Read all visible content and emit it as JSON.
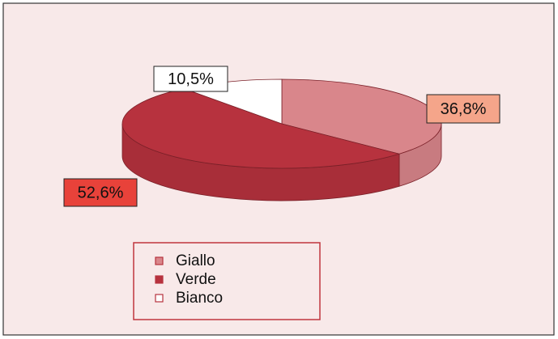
{
  "chart_data": {
    "type": "pie3d",
    "categories": [
      "Giallo",
      "Verde",
      "Bianco"
    ],
    "values": [
      36.8,
      52.6,
      10.5
    ],
    "value_labels": [
      "36,8%",
      "52,6%",
      "10,5%"
    ],
    "colors": [
      "#d9868b",
      "#b7323e",
      "#ffffff"
    ],
    "label_colors": [
      "#f5a58a",
      "#e8423a",
      "#ffffff"
    ]
  }
}
